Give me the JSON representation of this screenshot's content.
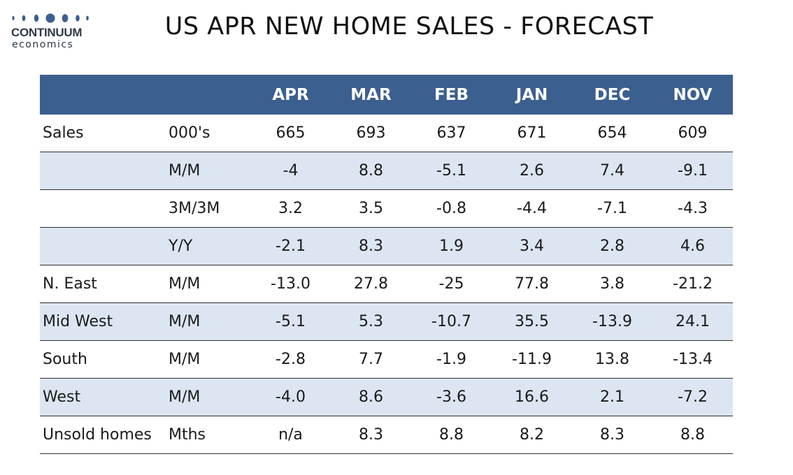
{
  "brand": {
    "name": "CONTINUUM",
    "sub": "economics",
    "color": "#2c3b48"
  },
  "colors": {
    "header_bg": "#3b5f8f",
    "shaded_row": "#dce6f2",
    "rule": "#2e2e2e"
  },
  "chart_data": {
    "type": "table",
    "title": "US APR NEW HOME SALES - FORECAST",
    "columns": [
      "APR",
      "MAR",
      "FEB",
      "JAN",
      "DEC",
      "NOV"
    ],
    "rows": [
      {
        "label": "Sales",
        "unit": "000's",
        "values": [
          "665",
          "693",
          "637",
          "671",
          "654",
          "609"
        ],
        "shaded": false
      },
      {
        "label": "",
        "unit": "M/M",
        "values": [
          "-4",
          "8.8",
          "-5.1",
          "2.6",
          "7.4",
          "-9.1"
        ],
        "shaded": true
      },
      {
        "label": "",
        "unit": "3M/3M",
        "values": [
          "3.2",
          "3.5",
          "-0.8",
          "-4.4",
          "-7.1",
          "-4.3"
        ],
        "shaded": false
      },
      {
        "label": "",
        "unit": "Y/Y",
        "values": [
          "-2.1",
          "8.3",
          "1.9",
          "3.4",
          "2.8",
          "4.6"
        ],
        "shaded": true
      },
      {
        "label": "N. East",
        "unit": "M/M",
        "values": [
          "-13.0",
          "27.8",
          "-25",
          "77.8",
          "3.8",
          "-21.2"
        ],
        "shaded": false
      },
      {
        "label": "Mid West",
        "unit": "M/M",
        "values": [
          "-5.1",
          "5.3",
          "-10.7",
          "35.5",
          "-13.9",
          "24.1"
        ],
        "shaded": true
      },
      {
        "label": "South",
        "unit": "M/M",
        "values": [
          "-2.8",
          "7.7",
          "-1.9",
          "-11.9",
          "13.8",
          "-13.4"
        ],
        "shaded": false
      },
      {
        "label": "West",
        "unit": "M/M",
        "values": [
          "-4.0",
          "8.6",
          "-3.6",
          "16.6",
          "2.1",
          "-7.2"
        ],
        "shaded": true
      },
      {
        "label": "Unsold homes",
        "unit": "Mths",
        "values": [
          "n/a",
          "8.3",
          "8.8",
          "8.2",
          "8.3",
          "8.8"
        ],
        "shaded": false
      }
    ]
  }
}
